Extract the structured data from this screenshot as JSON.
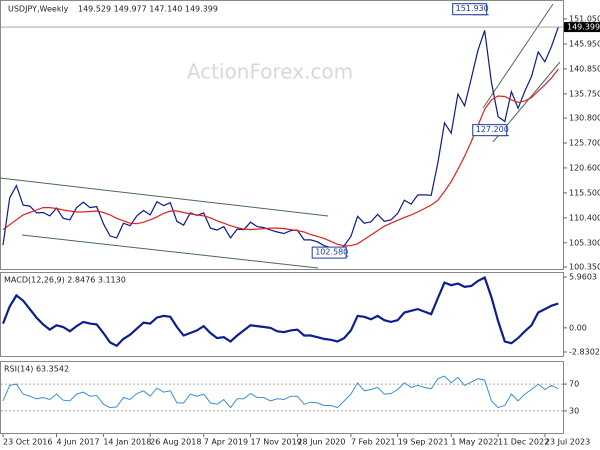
{
  "header": {
    "symbol": "USDJPY,Weekly",
    "quote": "149.529 149.977 147.140 149.399"
  },
  "watermark": "ActionForex.com",
  "chart_data": [
    {
      "type": "line",
      "title": "USDJPY,Weekly",
      "ylim": [
        100.35,
        151.05
      ],
      "yticks": [
        {
          "value": 151.05,
          "label": "151.050"
        },
        {
          "value": 145.95,
          "label": "145.950"
        },
        {
          "value": 140.85,
          "label": "140.850"
        },
        {
          "value": 135.75,
          "label": "135.750"
        },
        {
          "value": 130.8,
          "label": "130.800"
        },
        {
          "value": 125.7,
          "label": "125.700"
        },
        {
          "value": 120.6,
          "label": "120.600"
        },
        {
          "value": 115.5,
          "label": "115.500"
        },
        {
          "value": 110.4,
          "label": "110.400"
        },
        {
          "value": 105.3,
          "label": "105.300"
        },
        {
          "value": 100.35,
          "label": "100.350"
        }
      ],
      "xticks": [
        {
          "value": 0,
          "label": "23 Oct 2016"
        },
        {
          "value": 8,
          "label": "4 Jun 2017"
        },
        {
          "value": 15,
          "label": "14 Jan 2018"
        },
        {
          "value": 22,
          "label": "26 Aug 2018"
        },
        {
          "value": 30,
          "label": "7 Apr 2019"
        },
        {
          "value": 37,
          "label": "17 Nov 2019"
        },
        {
          "value": 44,
          "label": "28 Jun 2020"
        },
        {
          "value": 52,
          "label": "7 Feb 2021"
        },
        {
          "value": 59,
          "label": "19 Sep 2021"
        },
        {
          "value": 67,
          "label": "1 May 2022"
        },
        {
          "value": 74,
          "label": "11 Dec 2022"
        },
        {
          "value": 81,
          "label": "23 Jul 2023"
        }
      ],
      "last_price": {
        "value": 149.399,
        "label": "149.399"
      },
      "annotations": [
        {
          "value": 151.93,
          "label": "151.930",
          "index": 72
        },
        {
          "value": 127.2,
          "label": "127.200",
          "index": 75
        },
        {
          "value": 102.58,
          "label": "102.580",
          "index": 51
        }
      ],
      "series": [
        {
          "color": "#0d1a8c",
          "width": 1.2,
          "values": [
            104.8,
            114.5,
            117.0,
            113.0,
            112.8,
            111.4,
            111.5,
            110.8,
            112.4,
            110.3,
            110.0,
            112.5,
            113.6,
            112.5,
            112.7,
            109.2,
            106.7,
            106.3,
            109.3,
            108.8,
            110.8,
            111.9,
            111.0,
            113.7,
            112.9,
            113.5,
            109.7,
            108.9,
            111.4,
            110.9,
            111.4,
            108.3,
            107.9,
            108.6,
            106.3,
            108.1,
            108.0,
            109.5,
            108.6,
            108.4,
            107.9,
            107.5,
            107.2,
            107.8,
            107.9,
            105.9,
            105.9,
            105.5,
            104.7,
            104.3,
            103.3,
            104.7,
            106.6,
            110.7,
            109.3,
            109.6,
            111.1,
            109.7,
            110.0,
            111.3,
            114.0,
            113.2,
            115.1,
            115.1,
            115.0,
            121.7,
            129.8,
            127.7,
            135.7,
            133.3,
            138.9,
            144.7,
            148.7,
            138.1,
            131.1,
            130.1,
            136.2,
            132.8,
            136.3,
            139.3,
            144.3,
            142.3,
            145.5,
            149.4
          ]
        },
        {
          "color": "#e02020",
          "width": 1.2,
          "values": [
            108,
            109,
            110,
            111,
            111.5,
            112,
            112.5,
            112.5,
            112.3,
            112,
            111.8,
            111.6,
            111.6,
            111.7,
            111.8,
            111.5,
            111,
            110.3,
            109.8,
            109.3,
            109.2,
            109.5,
            110,
            110.6,
            111.3,
            111.8,
            111.8,
            111.5,
            111.2,
            111,
            110.8,
            110.4,
            109.8,
            109.3,
            108.8,
            108.4,
            108.1,
            108,
            108.1,
            108.2,
            108.3,
            108.3,
            108.2,
            108,
            107.8,
            107.5,
            107,
            106.6,
            106.2,
            105.6,
            105,
            104.7,
            104.7,
            105.1,
            106,
            106.9,
            107.8,
            108.7,
            109.3,
            109.9,
            110.5,
            111,
            111.6,
            112.3,
            113,
            114,
            115.8,
            117.8,
            120.3,
            123,
            126,
            129.3,
            132.6,
            134.5,
            135.3,
            135.2,
            134.5,
            134,
            134.3,
            135,
            136.3,
            137.6,
            139,
            140.8
          ]
        }
      ]
    },
    {
      "type": "line",
      "title": "MACD(12,26,9) 2.8476 3.1130",
      "ylim": [
        -2.8302,
        5.9603
      ],
      "yticks": [
        5.9603,
        {
          "value": 0,
          "label": "0.00"
        },
        -2.8302
      ],
      "series": [
        {
          "color": "#0b1f8f",
          "width": 2.2,
          "values": [
            0.5,
            2.5,
            3.8,
            3.2,
            2.2,
            1.2,
            0.4,
            -0.2,
            0.3,
            0.1,
            -0.4,
            0.2,
            0.7,
            0.5,
            0.4,
            -0.6,
            -1.7,
            -2.1,
            -1.3,
            -0.8,
            -0.1,
            0.6,
            0.5,
            1.2,
            1.4,
            1.3,
            0.1,
            -0.9,
            -0.6,
            -0.3,
            0.2,
            -0.6,
            -1.2,
            -1.1,
            -1.6,
            -0.9,
            -0.3,
            0.3,
            0.2,
            0.1,
            0.0,
            -0.4,
            -0.5,
            -0.3,
            -0.2,
            -0.9,
            -0.9,
            -1.1,
            -1.3,
            -1.4,
            -1.6,
            -1.2,
            -0.3,
            1.4,
            1.3,
            1.0,
            1.4,
            0.9,
            0.7,
            0.9,
            1.8,
            2.0,
            2.2,
            1.9,
            1.6,
            3.5,
            5.3,
            5.0,
            5.2,
            4.8,
            4.9,
            5.5,
            5.9,
            3.6,
            0.8,
            -1.6,
            -1.8,
            -1.2,
            -0.4,
            0.3,
            1.8,
            2.2,
            2.6,
            2.85
          ]
        }
      ]
    },
    {
      "type": "line",
      "title": "RSI(14) 63.3542",
      "ylim": [
        0,
        100
      ],
      "yticks": [
        70,
        30
      ],
      "series": [
        {
          "color": "#3a8fd8",
          "width": 1,
          "values": [
            45,
            68,
            70,
            55,
            52,
            48,
            50,
            47,
            55,
            46,
            45,
            55,
            58,
            52,
            53,
            40,
            35,
            36,
            50,
            47,
            56,
            60,
            52,
            64,
            58,
            60,
            42,
            42,
            55,
            52,
            55,
            42,
            40,
            47,
            35,
            48,
            48,
            56,
            50,
            50,
            45,
            48,
            47,
            52,
            52,
            40,
            43,
            42,
            38,
            38,
            35,
            45,
            55,
            72,
            60,
            62,
            65,
            55,
            56,
            62,
            72,
            65,
            68,
            65,
            63,
            78,
            82,
            72,
            80,
            68,
            73,
            78,
            76,
            45,
            35,
            38,
            55,
            45,
            55,
            62,
            70,
            62,
            68,
            63
          ]
        }
      ]
    }
  ]
}
